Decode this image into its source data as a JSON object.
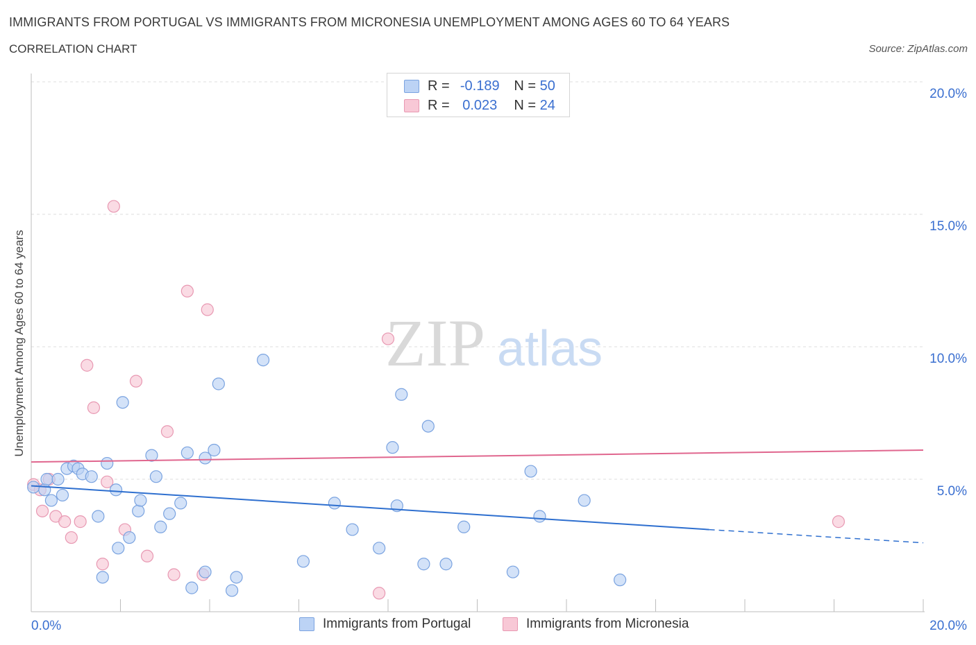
{
  "header": {
    "title": "IMMIGRANTS FROM PORTUGAL VS IMMIGRANTS FROM MICRONESIA UNEMPLOYMENT AMONG AGES 60 TO 64 YEARS",
    "subtitle": "CORRELATION CHART",
    "source": "Source: ZipAtlas.com"
  },
  "stats": {
    "row1": {
      "r_label": "R =",
      "r_value": "-0.189",
      "n_label": "N =",
      "n_value": "50"
    },
    "row2": {
      "r_label": "R =",
      "r_value": "0.023",
      "n_label": "N =",
      "n_value": "24"
    }
  },
  "watermark": {
    "zip": "ZIP",
    "atlas": "atlas"
  },
  "colors": {
    "portugal_fill": "#bcd3f5",
    "portugal_stroke": "#7aa3e0",
    "portugal_line": "#2e6fcf",
    "micronesia_fill": "#f8c8d6",
    "micronesia_stroke": "#e898b2",
    "micronesia_line": "#e0668e",
    "axis_label": "#3a6fd0",
    "grid": "#dcdcdc"
  },
  "chart_data": {
    "type": "scatter",
    "title": "IMMIGRANTS FROM PORTUGAL VS IMMIGRANTS FROM MICRONESIA UNEMPLOYMENT AMONG AGES 60 TO 64 YEARS",
    "subtitle": "CORRELATION CHART",
    "xlabel": "",
    "ylabel": "Unemployment Among Ages 60 to 64 years",
    "xlim": [
      0,
      20
    ],
    "ylim": [
      0,
      20
    ],
    "x_tick_labels": [
      "0.0%",
      "20.0%"
    ],
    "y_tick_labels": [
      "5.0%",
      "10.0%",
      "15.0%",
      "20.0%"
    ],
    "y_ticks": [
      5,
      10,
      15,
      20
    ],
    "grid": true,
    "legend_position": "bottom",
    "series": [
      {
        "name": "Immigrants from Portugal",
        "r": -0.189,
        "n": 50,
        "trend": {
          "x0": 0,
          "y0": 4.75,
          "x1": 15.2,
          "y1": 3.1,
          "dash_to_x": 20,
          "dash_to_y": 2.6
        },
        "points": [
          [
            0.05,
            4.7
          ],
          [
            0.3,
            4.6
          ],
          [
            0.35,
            5.0
          ],
          [
            0.45,
            4.2
          ],
          [
            0.6,
            5.0
          ],
          [
            0.7,
            4.4
          ],
          [
            0.8,
            5.4
          ],
          [
            0.95,
            5.5
          ],
          [
            1.05,
            5.4
          ],
          [
            1.15,
            5.2
          ],
          [
            1.35,
            5.1
          ],
          [
            1.5,
            3.6
          ],
          [
            1.6,
            1.3
          ],
          [
            1.7,
            5.6
          ],
          [
            1.9,
            4.6
          ],
          [
            1.95,
            2.4
          ],
          [
            2.05,
            7.9
          ],
          [
            2.2,
            2.8
          ],
          [
            2.4,
            3.8
          ],
          [
            2.45,
            4.2
          ],
          [
            2.7,
            5.9
          ],
          [
            2.8,
            5.1
          ],
          [
            2.9,
            3.2
          ],
          [
            3.1,
            3.7
          ],
          [
            3.35,
            4.1
          ],
          [
            3.5,
            6.0
          ],
          [
            3.6,
            0.9
          ],
          [
            3.9,
            5.8
          ],
          [
            3.9,
            1.5
          ],
          [
            4.1,
            6.1
          ],
          [
            4.2,
            8.6
          ],
          [
            4.5,
            0.8
          ],
          [
            4.6,
            1.3
          ],
          [
            5.2,
            9.5
          ],
          [
            6.1,
            1.9
          ],
          [
            6.8,
            4.1
          ],
          [
            7.2,
            3.1
          ],
          [
            7.8,
            2.4
          ],
          [
            8.1,
            6.2
          ],
          [
            8.2,
            4.0
          ],
          [
            8.3,
            8.2
          ],
          [
            8.8,
            1.8
          ],
          [
            8.9,
            7.0
          ],
          [
            9.3,
            1.8
          ],
          [
            9.7,
            3.2
          ],
          [
            10.8,
            1.5
          ],
          [
            11.2,
            5.3
          ],
          [
            11.4,
            3.6
          ],
          [
            12.4,
            4.2
          ],
          [
            13.2,
            1.2
          ]
        ]
      },
      {
        "name": "Immigrants from Micronesia",
        "r": 0.023,
        "n": 24,
        "trend": {
          "x0": 0,
          "y0": 5.65,
          "x1": 20,
          "y1": 6.1
        },
        "points": [
          [
            0.05,
            4.8
          ],
          [
            0.2,
            4.6
          ],
          [
            0.25,
            3.8
          ],
          [
            0.4,
            5.0
          ],
          [
            0.55,
            3.6
          ],
          [
            0.75,
            3.4
          ],
          [
            0.9,
            2.8
          ],
          [
            1.1,
            3.4
          ],
          [
            1.25,
            9.3
          ],
          [
            1.4,
            7.7
          ],
          [
            1.6,
            1.8
          ],
          [
            1.7,
            4.9
          ],
          [
            1.85,
            15.3
          ],
          [
            2.1,
            3.1
          ],
          [
            2.35,
            8.7
          ],
          [
            2.6,
            2.1
          ],
          [
            3.05,
            6.8
          ],
          [
            3.2,
            1.4
          ],
          [
            3.5,
            12.1
          ],
          [
            3.85,
            1.4
          ],
          [
            3.95,
            11.4
          ],
          [
            7.8,
            0.7
          ],
          [
            8.0,
            10.3
          ],
          [
            18.1,
            3.4
          ]
        ]
      }
    ]
  },
  "legend": {
    "items": [
      "Immigrants from Portugal",
      "Immigrants from Micronesia"
    ]
  }
}
